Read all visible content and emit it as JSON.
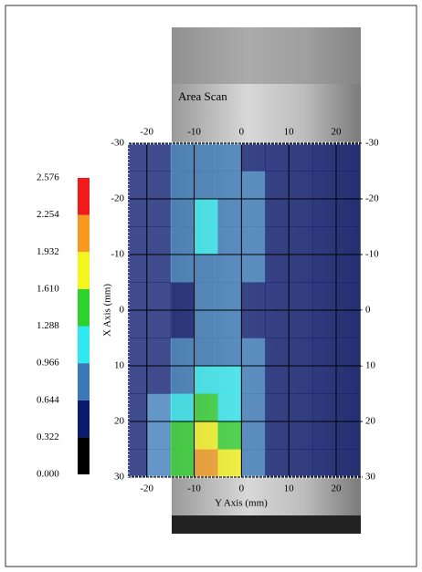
{
  "chart_data": {
    "type": "heatmap",
    "title": "Area Scan",
    "x_label": "Y Axis (mm)",
    "y_label": "X Axis (mm)",
    "x": [
      -22.5,
      -17.5,
      -12.5,
      -7.5,
      -2.5,
      2.5,
      7.5,
      12.5,
      17.5,
      22.5
    ],
    "y": [
      -27.5,
      -22.5,
      -17.5,
      -12.5,
      -7.5,
      -2.5,
      2.5,
      7.5,
      12.5,
      17.5,
      22.5,
      27.5
    ],
    "z": [
      [
        0.5,
        0.5,
        0.8,
        0.8,
        0.8,
        0.5,
        0.5,
        0.5,
        0.5,
        0.5
      ],
      [
        0.5,
        0.5,
        0.8,
        0.8,
        0.8,
        0.8,
        0.5,
        0.5,
        0.5,
        0.5
      ],
      [
        0.5,
        0.5,
        0.8,
        1.1,
        0.8,
        0.8,
        0.5,
        0.5,
        0.5,
        0.5
      ],
      [
        0.5,
        0.5,
        0.8,
        1.1,
        0.8,
        0.8,
        0.5,
        0.5,
        0.5,
        0.5
      ],
      [
        0.5,
        0.5,
        0.8,
        0.8,
        0.8,
        0.8,
        0.5,
        0.5,
        0.5,
        0.5
      ],
      [
        0.5,
        0.5,
        0.5,
        0.8,
        0.8,
        0.5,
        0.5,
        0.5,
        0.5,
        0.5
      ],
      [
        0.5,
        0.5,
        0.5,
        0.8,
        0.8,
        0.5,
        0.5,
        0.5,
        0.5,
        0.5
      ],
      [
        0.5,
        0.5,
        0.8,
        0.8,
        0.8,
        0.8,
        0.5,
        0.5,
        0.5,
        0.5
      ],
      [
        0.5,
        0.5,
        0.8,
        1.1,
        1.1,
        0.8,
        0.5,
        0.5,
        0.5,
        0.5
      ],
      [
        0.5,
        0.8,
        1.1,
        1.4,
        1.1,
        0.8,
        0.5,
        0.5,
        0.5,
        0.5
      ],
      [
        0.5,
        0.8,
        1.4,
        1.8,
        1.4,
        0.8,
        0.5,
        0.5,
        0.5,
        0.5
      ],
      [
        0.5,
        0.8,
        1.4,
        2.1,
        1.8,
        0.8,
        0.5,
        0.5,
        0.5,
        0.5
      ]
    ],
    "xlim": [
      -24,
      25.6
    ],
    "ylim": [
      -30,
      30
    ],
    "xticks": [
      -20,
      -10,
      0,
      10,
      20
    ],
    "yticks": [
      -30,
      -20,
      -10,
      0,
      10,
      20,
      30
    ],
    "grid": true,
    "colorbar": {
      "levels": [
        {
          "value": 0,
          "label": "0.000"
        },
        {
          "value": 0.322,
          "label": "0.322"
        },
        {
          "value": 0.644,
          "label": "0.644"
        },
        {
          "value": 0.966,
          "label": "0.966"
        },
        {
          "value": 1.288,
          "label": "1.288"
        },
        {
          "value": 1.61,
          "label": "1.610"
        },
        {
          "value": 1.932,
          "label": "1.932"
        },
        {
          "value": 2.254,
          "label": "2.254"
        },
        {
          "value": 2.576,
          "label": "2.576"
        }
      ],
      "colors": [
        "#000000",
        "#0a1a6e",
        "#3a78b8",
        "#30e8f0",
        "#2ed12e",
        "#f5f51e",
        "#f59a1e",
        "#f01a1a"
      ]
    }
  }
}
